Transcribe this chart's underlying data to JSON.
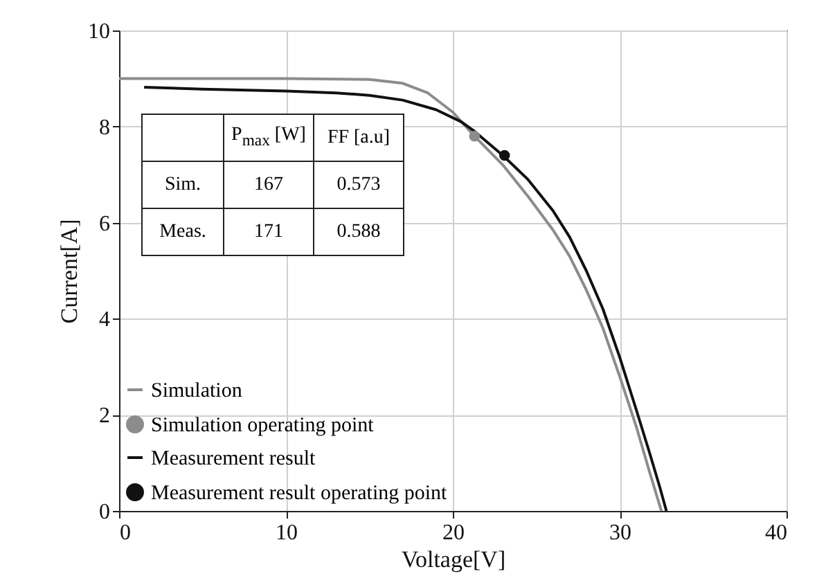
{
  "chart_data": {
    "type": "line",
    "xlabel": "Voltage[V]",
    "ylabel": "Current[A]",
    "xlim": [
      0,
      40
    ],
    "xticks": [
      0,
      10,
      20,
      30,
      40
    ],
    "ylim": [
      0,
      10
    ],
    "yticks": [
      0,
      2,
      4,
      6,
      8,
      10
    ],
    "grid": true,
    "legend": "bottom left",
    "line_style": "solid",
    "annotations": [
      "P$_{max}$ [W]",
      "FF [a.u]",
      "Sim.",
      "167",
      "0.573",
      "Meas.",
      "171",
      "0.588"
    ],
    "series": [
      {
        "name": "Simulation",
        "color": "#8c8c8c",
        "x": [
          0,
          10,
          15,
          17,
          18.5,
          20,
          21.3,
          23,
          24.5,
          26,
          27,
          28,
          29,
          30,
          31,
          31.8,
          32.5
        ],
        "values": [
          9.0,
          9.0,
          8.98,
          8.9,
          8.7,
          8.3,
          7.8,
          7.2,
          6.55,
          5.85,
          5.3,
          4.6,
          3.8,
          2.8,
          1.75,
          0.8,
          0
        ]
      },
      {
        "name": "Simulation operating point",
        "type": "scatter",
        "marker": "circle",
        "color": "#8c8c8c",
        "x": [
          21.3
        ],
        "values": [
          7.8
        ]
      },
      {
        "name": "Measurement result",
        "color": "#111111",
        "x": [
          1.5,
          5,
          10,
          13,
          15,
          17,
          19,
          20.5,
          21.3,
          23,
          24.5,
          26,
          27,
          28,
          29,
          30,
          31,
          31.8,
          32.4,
          32.8
        ],
        "values": [
          8.82,
          8.78,
          8.74,
          8.7,
          8.65,
          8.55,
          8.35,
          8.1,
          7.9,
          7.4,
          6.9,
          6.25,
          5.7,
          5.0,
          4.2,
          3.2,
          2.1,
          1.2,
          0.5,
          0
        ]
      },
      {
        "name": "Measurement result operating point",
        "type": "scatter",
        "marker": "circle",
        "color": "#111111",
        "x": [
          23.1
        ],
        "values": [
          7.4
        ]
      }
    ]
  }
}
